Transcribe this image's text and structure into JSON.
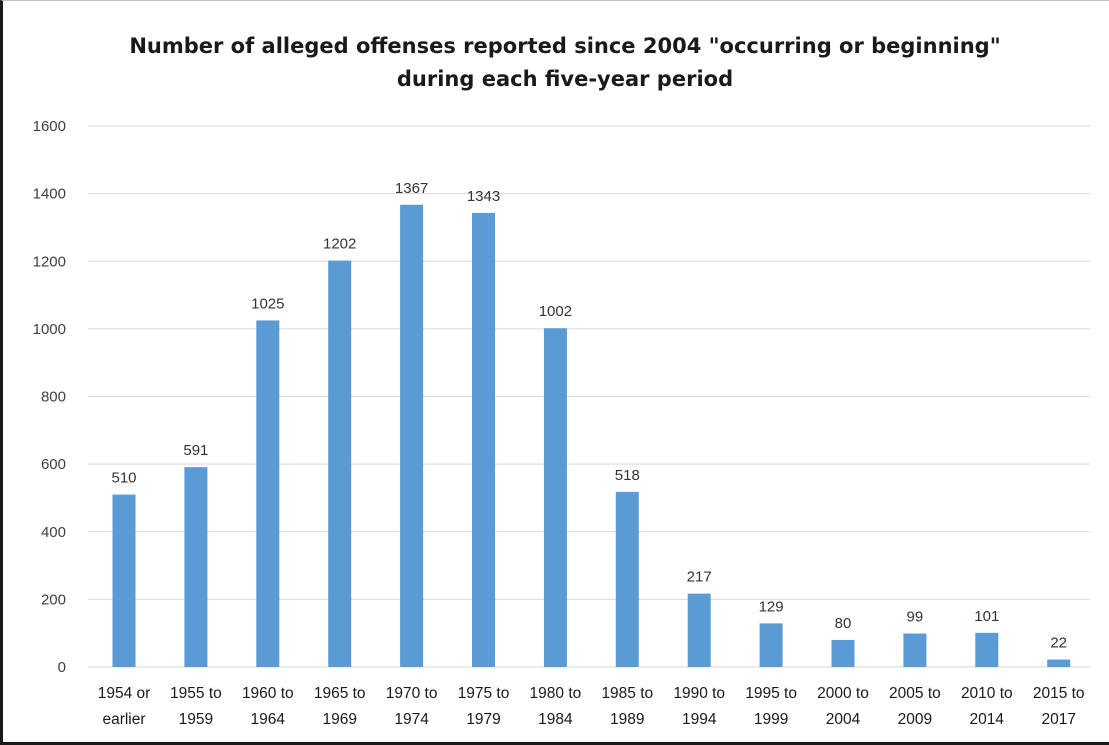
{
  "chart_data": {
    "type": "bar",
    "title_lines": [
      "Number of alleged offenses reported since 2004 \"occurring or beginning\"",
      "during each five-year period"
    ],
    "categories": [
      [
        "1954 or",
        "earlier"
      ],
      [
        "1955 to",
        "1959"
      ],
      [
        "1960 to",
        "1964"
      ],
      [
        "1965 to",
        "1969"
      ],
      [
        "1970 to",
        "1974"
      ],
      [
        "1975 to",
        "1979"
      ],
      [
        "1980 to",
        "1984"
      ],
      [
        "1985 to",
        "1989"
      ],
      [
        "1990 to",
        "1994"
      ],
      [
        "1995 to",
        "1999"
      ],
      [
        "2000 to",
        "2004"
      ],
      [
        "2005 to",
        "2009"
      ],
      [
        "2010 to",
        "2014"
      ],
      [
        "2015 to",
        "2017"
      ]
    ],
    "values": [
      510,
      591,
      1025,
      1202,
      1367,
      1343,
      1002,
      518,
      217,
      129,
      80,
      99,
      101,
      22
    ],
    "ylim": [
      0,
      1600
    ],
    "yticks": [
      0,
      200,
      400,
      600,
      800,
      1000,
      1200,
      1400,
      1600
    ],
    "xlabel": "",
    "ylabel": "",
    "grid": true,
    "legend": "none",
    "bar_color": "#5b9bd5",
    "grid_color": "#d9d9d9"
  }
}
